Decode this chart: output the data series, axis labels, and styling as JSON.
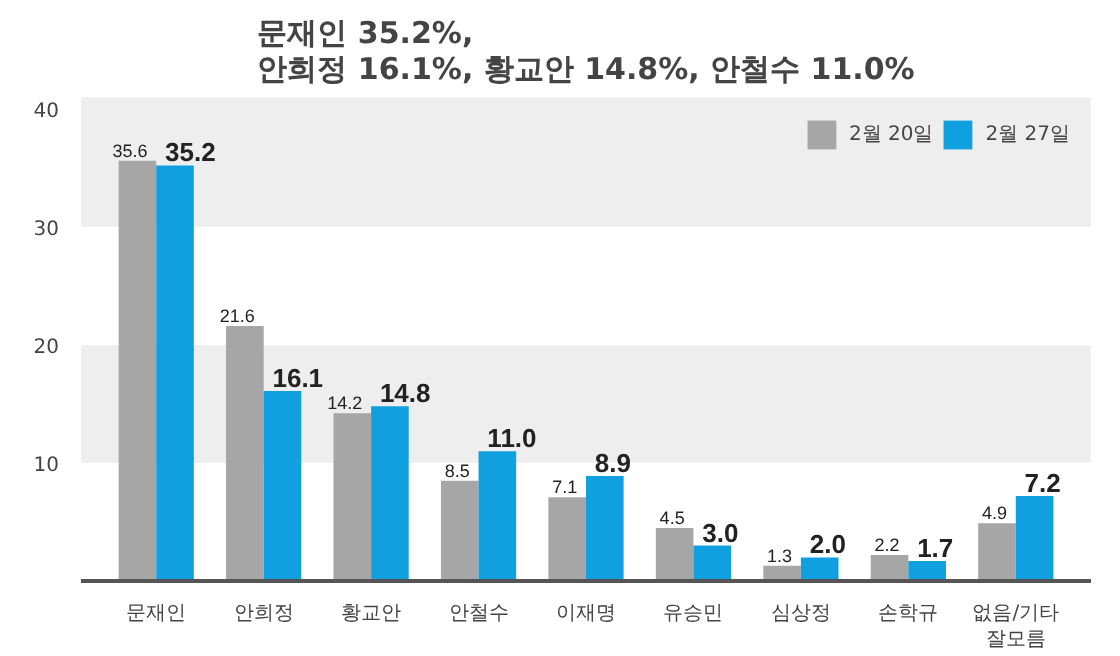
{
  "chart_data": {
    "type": "bar",
    "title": "문재인 35.2%,\n안희정 16.1%, 황교안 14.8%, 안철수 11.0%",
    "categories": [
      "문재인",
      "안희정",
      "황교안",
      "안철수",
      "이재명",
      "유승민",
      "심상정",
      "손학규",
      "없음/기타\n잘모름"
    ],
    "series": [
      {
        "name": "2월 20일",
        "color": "#a6a6a6",
        "values": [
          35.6,
          21.6,
          14.2,
          8.5,
          7.1,
          4.5,
          1.3,
          2.2,
          4.9
        ],
        "value_labels": [
          "35.6",
          "21.6",
          "14.2",
          "8.5",
          "7.1",
          "4.5",
          "1.3",
          "2.2",
          "4.9"
        ]
      },
      {
        "name": "2월 27일",
        "color": "#10a0e0",
        "values": [
          35.2,
          16.1,
          14.8,
          11.0,
          8.9,
          3.0,
          2.0,
          1.7,
          7.2
        ],
        "value_labels": [
          "35.2",
          "16.1",
          "14.8",
          "11.0",
          "8.9",
          "3.0",
          "2.0",
          "1.7",
          "7.2"
        ]
      }
    ],
    "ylim": [
      0,
      41
    ],
    "yticks": [
      10,
      20,
      30,
      40
    ],
    "bands": [
      {
        "axis": "y",
        "from": 10,
        "to": 20,
        "color": "#eeeeee"
      },
      {
        "axis": "y",
        "from": 30,
        "to": 41,
        "color": "#eeeeee"
      }
    ],
    "legend": "top right",
    "grid": false
  }
}
